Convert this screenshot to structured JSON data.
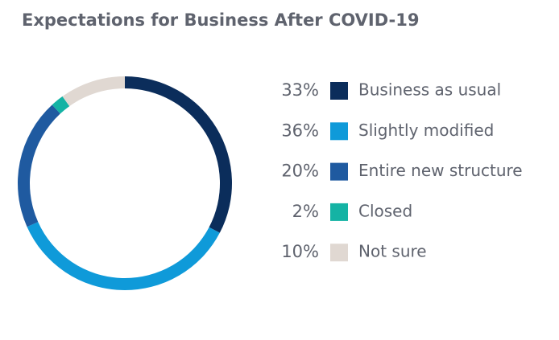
{
  "chart_data": {
    "type": "donut",
    "title": "Expectations for Business After COVID-19",
    "categories": [
      "Business as usual",
      "Slightly modified",
      "Entire new structure",
      "Closed",
      "Not sure"
    ],
    "values": [
      33,
      36,
      20,
      2,
      10
    ],
    "value_labels": [
      "33%",
      "36%",
      "20%",
      "2%",
      "10%"
    ],
    "colors": [
      "#0b2d5b",
      "#0f9ad9",
      "#1f5aa0",
      "#14b3a4",
      "#e0d8d2"
    ]
  }
}
